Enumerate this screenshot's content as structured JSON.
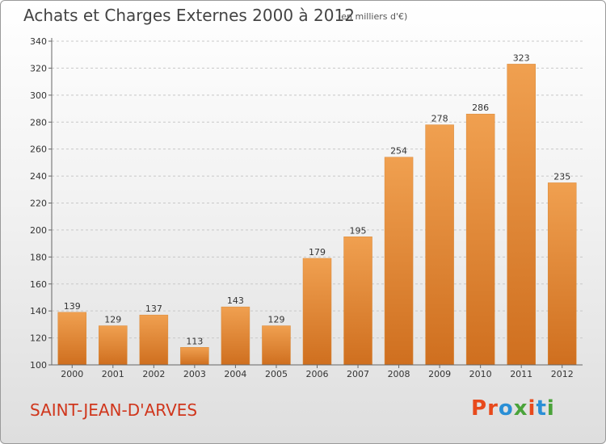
{
  "header": {
    "title": "Achats et Charges Externes 2000 à 2012",
    "subtitle": "(en milliers d'€)"
  },
  "footer": {
    "commune": "SAINT-JEAN-D'ARVES",
    "logo_letters": [
      "P",
      "r",
      "o",
      "x",
      "i",
      "t",
      "i"
    ],
    "logo_colors": [
      "#e84a1c",
      "#e84a1c",
      "#2a8fd6",
      "#4aa33a",
      "#e84a1c",
      "#2a8fd6",
      "#4aa33a"
    ]
  },
  "chart_data": {
    "type": "bar",
    "title": "Achats et Charges Externes 2000 à 2012",
    "subtitle": "(en milliers d'€)",
    "categories": [
      "2000",
      "2001",
      "2002",
      "2003",
      "2004",
      "2005",
      "2006",
      "2007",
      "2008",
      "2009",
      "2010",
      "2011",
      "2012"
    ],
    "values": [
      139,
      129,
      137,
      113,
      143,
      129,
      179,
      195,
      254,
      278,
      286,
      323,
      235
    ],
    "ylim": [
      100,
      340
    ],
    "yticks": [
      100,
      120,
      140,
      160,
      180,
      200,
      220,
      240,
      260,
      280,
      300,
      320,
      340
    ],
    "grid": true,
    "bar_color": "#f0a050",
    "bar_color_dark": "#cf6f1f"
  }
}
